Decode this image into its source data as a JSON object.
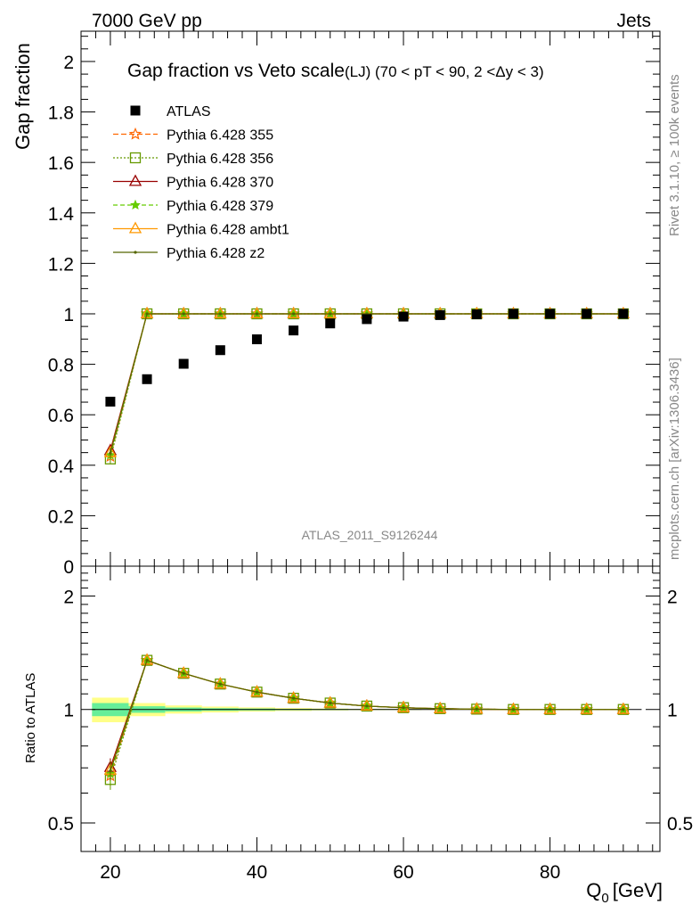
{
  "header": {
    "energy_label": "7000 GeV pp",
    "process_label": "Jets",
    "side_label_version": "Rivet 3.1.10, ≥ 100k events",
    "side_label_source": "mcplots.cern.ch [arXiv:1306.3436]",
    "analysis_watermark": "ATLAS_2011_S9126244"
  },
  "chart_data": [
    {
      "type": "line",
      "title": "Gap fraction vs Veto scale",
      "subtitle": "(LJ) (70 < pT <  90, 2 <Δy < 3)",
      "xlabel": "Q",
      "xlabel_sub": "0",
      "xlabel_unit": "[GeV]",
      "ylabel": "Gap fraction",
      "xlim": [
        16,
        95
      ],
      "ylim": [
        0,
        2.12
      ],
      "yticks": [
        0,
        0.2,
        0.4,
        0.6,
        0.8,
        1,
        1.2,
        1.4,
        1.6,
        1.8,
        2
      ],
      "ytick_labels": [
        "0",
        "0.2",
        "0.4",
        "0.6",
        "0.8",
        "1",
        "1.2",
        "1.4",
        "1.6",
        "1.8",
        "2"
      ],
      "x": [
        20,
        25,
        30,
        35,
        40,
        45,
        50,
        55,
        60,
        65,
        70,
        75,
        80,
        85,
        90
      ],
      "data": {
        "name": "ATLAS",
        "color": "#000000",
        "values": [
          0.652,
          0.741,
          0.802,
          0.856,
          0.899,
          0.934,
          0.962,
          0.979,
          0.989,
          0.995,
          0.998,
          1.0,
          1.0,
          1.0,
          1.0
        ]
      },
      "series": [
        {
          "name": "Pythia 6.428 355",
          "color": "#ff6600",
          "marker": "star",
          "dash": "6,3",
          "values": [
            0.435,
            1.0,
            1.0,
            1.0,
            1.0,
            1.0,
            1.0,
            1.0,
            1.0,
            1.0,
            1.0,
            1.0,
            1.0,
            1.0,
            1.0
          ]
        },
        {
          "name": "Pythia 6.428 356",
          "color": "#669900",
          "marker": "square",
          "dash": "2,2",
          "values": [
            0.425,
            1.0,
            1.0,
            1.0,
            1.0,
            1.0,
            1.0,
            1.0,
            1.0,
            1.0,
            1.0,
            1.0,
            1.0,
            1.0,
            1.0
          ]
        },
        {
          "name": "Pythia 6.428 370",
          "color": "#990000",
          "marker": "triangle",
          "dash": "",
          "values": [
            0.458,
            1.0,
            1.0,
            1.0,
            1.0,
            1.0,
            1.0,
            1.0,
            1.0,
            1.0,
            1.0,
            1.0,
            1.0,
            1.0,
            1.0
          ]
        },
        {
          "name": "Pythia 6.428 379",
          "color": "#66cc00",
          "marker": "smallstar",
          "dash": "5,3",
          "values": [
            0.44,
            1.0,
            1.0,
            1.0,
            1.0,
            1.0,
            1.0,
            1.0,
            1.0,
            1.0,
            1.0,
            1.0,
            1.0,
            1.0,
            1.0
          ]
        },
        {
          "name": "Pythia 6.428 ambt1",
          "color": "#ff9900",
          "marker": "triangle-open",
          "dash": "",
          "values": [
            0.45,
            1.0,
            1.0,
            1.0,
            1.0,
            1.0,
            1.0,
            1.0,
            1.0,
            1.0,
            1.0,
            1.0,
            1.0,
            1.0,
            1.0
          ]
        },
        {
          "name": "Pythia 6.428 z2",
          "color": "#556600",
          "marker": "dot",
          "dash": "",
          "values": [
            0.448,
            1.0,
            1.0,
            1.0,
            1.0,
            1.0,
            1.0,
            1.0,
            1.0,
            1.0,
            1.0,
            1.0,
            1.0,
            1.0,
            1.0
          ]
        }
      ]
    },
    {
      "type": "line",
      "title": "",
      "ylabel": "Ratio to ATLAS",
      "xlabel": "Q",
      "xticks": [
        20,
        40,
        60,
        80
      ],
      "xtick_labels": [
        "20",
        "40",
        "60",
        "80"
      ],
      "ylim": [
        0.42,
        2.4
      ],
      "yscale": "log",
      "yticks": [
        0.5,
        1,
        2
      ],
      "ytick_labels": [
        "0.5",
        "1",
        "2"
      ],
      "x": [
        20,
        25,
        30,
        35,
        40,
        45,
        50,
        55,
        60,
        65,
        70,
        75,
        80,
        85,
        90
      ],
      "band": {
        "x_edges": [
          17.5,
          22.5,
          27.5,
          32.5,
          37.5,
          42.5,
          47.5,
          52.5,
          57.5,
          62.5,
          67.5,
          72.5,
          77.5,
          82.5,
          87.5,
          92.5
        ],
        "inner": [
          0.04,
          0.02,
          0.012,
          0.008,
          0.006,
          0.004,
          0.003,
          0.002,
          0.002,
          0.001,
          0.001,
          0.001,
          0.001,
          0.001,
          0.001
        ],
        "outer": [
          0.075,
          0.04,
          0.025,
          0.018,
          0.013,
          0.009,
          0.006,
          0.004,
          0.003,
          0.002,
          0.002,
          0.001,
          0.001,
          0.001,
          0.001
        ],
        "inner_color": "#66ee99",
        "outer_color": "#ffff88"
      },
      "series": [
        {
          "name": "Pythia 6.428 355",
          "values": [
            0.667,
            1.35,
            1.247,
            1.168,
            1.112,
            1.071,
            1.04,
            1.021,
            1.011,
            1.005,
            1.002,
            1.0,
            1.0,
            1.0,
            1.0
          ]
        },
        {
          "name": "Pythia 6.428 356",
          "values": [
            0.652,
            1.35,
            1.247,
            1.168,
            1.112,
            1.071,
            1.04,
            1.021,
            1.011,
            1.005,
            1.002,
            1.0,
            1.0,
            1.0,
            1.0
          ]
        },
        {
          "name": "Pythia 6.428 370",
          "values": [
            0.702,
            1.35,
            1.247,
            1.168,
            1.112,
            1.071,
            1.04,
            1.021,
            1.011,
            1.005,
            1.002,
            1.0,
            1.0,
            1.0,
            1.0
          ]
        },
        {
          "name": "Pythia 6.428 379",
          "values": [
            0.675,
            1.35,
            1.247,
            1.168,
            1.112,
            1.071,
            1.04,
            1.021,
            1.011,
            1.005,
            1.002,
            1.0,
            1.0,
            1.0,
            1.0
          ]
        },
        {
          "name": "Pythia 6.428 ambt1",
          "values": [
            0.69,
            1.35,
            1.247,
            1.168,
            1.112,
            1.071,
            1.04,
            1.021,
            1.011,
            1.005,
            1.002,
            1.0,
            1.0,
            1.0,
            1.0
          ]
        },
        {
          "name": "Pythia 6.428 z2",
          "values": [
            0.687,
            1.35,
            1.247,
            1.168,
            1.112,
            1.071,
            1.04,
            1.021,
            1.011,
            1.005,
            1.002,
            1.0,
            1.0,
            1.0,
            1.0
          ]
        }
      ]
    }
  ]
}
